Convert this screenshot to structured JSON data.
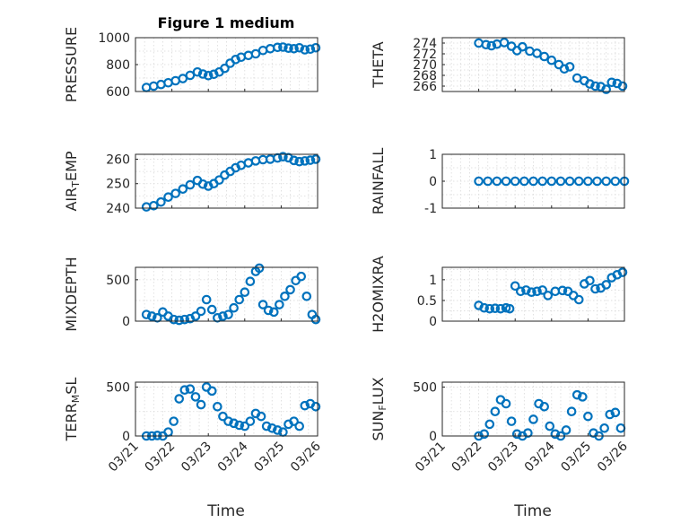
{
  "title": "Figure 1 medium",
  "xlabel": "Time",
  "x_ticks": [
    "03/21",
    "03/22",
    "03/23",
    "03/24",
    "03/25",
    "03/26"
  ],
  "chart_data": [
    {
      "type": "scatter",
      "id": "pressure",
      "ylabel_parts": [
        {
          "t": "PRESSURE"
        }
      ],
      "ylim": [
        600,
        1000
      ],
      "yticks": [
        600,
        800,
        1000
      ],
      "xlim": [
        "03/21",
        "03/26"
      ],
      "series": [
        {
          "x": [
            1.3,
            1.5,
            1.7,
            1.9,
            2.1,
            2.3,
            2.5,
            2.7,
            2.85,
            3.0,
            3.15,
            3.3,
            3.45,
            3.6,
            3.75,
            3.9,
            4.1,
            4.3,
            4.5,
            4.7,
            4.9,
            5.05,
            5.2,
            5.35,
            5.5,
            5.65,
            5.8,
            5.95
          ],
          "y": [
            630,
            640,
            652,
            665,
            680,
            696,
            720,
            745,
            730,
            718,
            728,
            745,
            772,
            810,
            838,
            855,
            868,
            880,
            905,
            918,
            928,
            930,
            922,
            918,
            925,
            910,
            915,
            925
          ]
        }
      ]
    },
    {
      "type": "scatter",
      "id": "theta",
      "ylabel_parts": [
        {
          "t": "THETA"
        }
      ],
      "ylim": [
        265,
        275
      ],
      "yticks": [
        266,
        268,
        270,
        272,
        274
      ],
      "xlim": [
        "03/21",
        "03/26"
      ],
      "series": [
        {
          "x": [
            2.0,
            2.2,
            2.35,
            2.5,
            2.7,
            2.9,
            3.05,
            3.2,
            3.4,
            3.6,
            3.8,
            4.0,
            4.2,
            4.35,
            4.5,
            4.7,
            4.9,
            5.05,
            5.2,
            5.35,
            5.5,
            5.65,
            5.8,
            5.95
          ],
          "y": [
            274.0,
            273.7,
            273.5,
            273.8,
            274.1,
            273.4,
            272.6,
            273.3,
            272.5,
            272.1,
            271.5,
            270.8,
            270.0,
            269.2,
            269.6,
            267.5,
            267.0,
            266.4,
            266.0,
            265.9,
            265.4,
            266.7,
            266.5,
            266.0
          ]
        }
      ]
    },
    {
      "type": "scatter",
      "id": "airtemp",
      "ylabel_parts": [
        {
          "t": "AIR"
        },
        {
          "t": "T",
          "sub": true
        },
        {
          "t": "EMP"
        }
      ],
      "ylim": [
        240,
        262
      ],
      "yticks": [
        240,
        250,
        260
      ],
      "xlim": [
        "03/21",
        "03/26"
      ],
      "series": [
        {
          "x": [
            1.3,
            1.5,
            1.7,
            1.9,
            2.1,
            2.3,
            2.5,
            2.7,
            2.85,
            3.0,
            3.15,
            3.3,
            3.45,
            3.6,
            3.75,
            3.9,
            4.1,
            4.3,
            4.5,
            4.7,
            4.9,
            5.05,
            5.2,
            5.35,
            5.5,
            5.65,
            5.8,
            5.95
          ],
          "y": [
            240.5,
            241.0,
            242.5,
            244.5,
            246.0,
            247.8,
            249.5,
            251.3,
            249.8,
            249.0,
            250.0,
            251.5,
            253.5,
            255.0,
            256.5,
            257.5,
            258.5,
            259.3,
            259.8,
            260.0,
            260.5,
            261.0,
            260.6,
            259.5,
            259.0,
            259.3,
            259.6,
            260.0
          ]
        }
      ]
    },
    {
      "type": "scatter",
      "id": "rainfall",
      "ylabel_parts": [
        {
          "t": "RAINFALL"
        }
      ],
      "ylim": [
        -1,
        1
      ],
      "yticks": [
        -1,
        0,
        1
      ],
      "xlim": [
        "03/21",
        "03/26"
      ],
      "series": [
        {
          "x": [
            2.0,
            2.25,
            2.5,
            2.75,
            3.0,
            3.25,
            3.5,
            3.75,
            4.0,
            4.25,
            4.5,
            4.75,
            5.0,
            5.25,
            5.5,
            5.75,
            6.0
          ],
          "y": [
            0,
            0,
            0,
            0,
            0,
            0,
            0,
            0,
            0,
            0,
            0,
            0,
            0,
            0,
            0,
            0,
            0
          ]
        }
      ]
    },
    {
      "type": "scatter",
      "id": "mixdepth",
      "ylabel_parts": [
        {
          "t": "MIXDEPTH"
        }
      ],
      "ylim": [
        0,
        650
      ],
      "yticks": [
        0,
        500
      ],
      "xlim": [
        "03/21",
        "03/26"
      ],
      "series": [
        {
          "x": [
            1.3,
            1.45,
            1.6,
            1.75,
            1.9,
            2.05,
            2.2,
            2.35,
            2.5,
            2.65,
            2.8,
            2.95,
            3.1,
            3.25,
            3.4,
            3.55,
            3.7,
            3.85,
            4.0,
            4.15,
            4.3,
            4.4,
            4.5,
            4.65,
            4.8,
            4.95,
            5.1,
            5.25,
            5.4,
            5.55,
            5.7,
            5.85,
            5.95
          ],
          "y": [
            80,
            60,
            40,
            110,
            60,
            20,
            10,
            20,
            30,
            60,
            120,
            260,
            140,
            40,
            60,
            80,
            160,
            260,
            350,
            480,
            600,
            640,
            200,
            130,
            110,
            200,
            300,
            380,
            490,
            540,
            300,
            80,
            20
          ]
        }
      ]
    },
    {
      "type": "scatter",
      "id": "h2omixra",
      "ylabel_parts": [
        {
          "t": "H2OMIXRA"
        }
      ],
      "ylim": [
        0,
        1.3
      ],
      "yticks": [
        0,
        0.5,
        1
      ],
      "xlim": [
        "03/21",
        "03/26"
      ],
      "series": [
        {
          "x": [
            2.0,
            2.15,
            2.3,
            2.45,
            2.6,
            2.75,
            2.85,
            3.0,
            3.15,
            3.3,
            3.45,
            3.6,
            3.75,
            3.9,
            4.1,
            4.3,
            4.45,
            4.6,
            4.75,
            4.9,
            5.05,
            5.2,
            5.35,
            5.5,
            5.65,
            5.8,
            5.95
          ],
          "y": [
            0.38,
            0.32,
            0.3,
            0.31,
            0.3,
            0.32,
            0.3,
            0.85,
            0.72,
            0.75,
            0.7,
            0.72,
            0.75,
            0.62,
            0.72,
            0.74,
            0.72,
            0.62,
            0.52,
            0.9,
            0.98,
            0.78,
            0.8,
            0.88,
            1.05,
            1.12,
            1.18
          ]
        }
      ]
    },
    {
      "type": "scatter",
      "id": "terrmsl",
      "ylabel_parts": [
        {
          "t": "TERR"
        },
        {
          "t": "M",
          "sub": true
        },
        {
          "t": "SL"
        }
      ],
      "ylim": [
        0,
        550
      ],
      "yticks": [
        0,
        500
      ],
      "xlim": [
        "03/21",
        "03/26"
      ],
      "series": [
        {
          "x": [
            1.3,
            1.45,
            1.6,
            1.75,
            1.9,
            2.05,
            2.2,
            2.35,
            2.5,
            2.65,
            2.8,
            2.95,
            3.1,
            3.25,
            3.4,
            3.55,
            3.7,
            3.85,
            4.0,
            4.15,
            4.3,
            4.45,
            4.6,
            4.75,
            4.9,
            5.05,
            5.2,
            5.35,
            5.5,
            5.65,
            5.8,
            5.95
          ],
          "y": [
            0,
            0,
            5,
            0,
            40,
            150,
            380,
            470,
            480,
            400,
            320,
            500,
            460,
            300,
            200,
            150,
            130,
            110,
            100,
            150,
            230,
            200,
            100,
            80,
            60,
            40,
            120,
            150,
            100,
            310,
            330,
            300
          ]
        }
      ]
    },
    {
      "type": "scatter",
      "id": "sunflux",
      "ylabel_parts": [
        {
          "t": "SUN"
        },
        {
          "t": "F",
          "sub": true
        },
        {
          "t": "LUX"
        }
      ],
      "ylim": [
        0,
        550
      ],
      "yticks": [
        0,
        500
      ],
      "xlim": [
        "03/21",
        "03/26"
      ],
      "series": [
        {
          "x": [
            2.0,
            2.15,
            2.3,
            2.45,
            2.6,
            2.75,
            2.9,
            3.05,
            3.2,
            3.35,
            3.5,
            3.65,
            3.8,
            3.95,
            4.1,
            4.25,
            4.4,
            4.55,
            4.7,
            4.85,
            5.0,
            5.15,
            5.3,
            5.45,
            5.6,
            5.75,
            5.9
          ],
          "y": [
            0,
            20,
            120,
            250,
            370,
            330,
            150,
            20,
            0,
            30,
            170,
            330,
            300,
            100,
            20,
            0,
            60,
            250,
            420,
            400,
            200,
            30,
            0,
            80,
            220,
            240,
            80
          ]
        }
      ]
    }
  ]
}
